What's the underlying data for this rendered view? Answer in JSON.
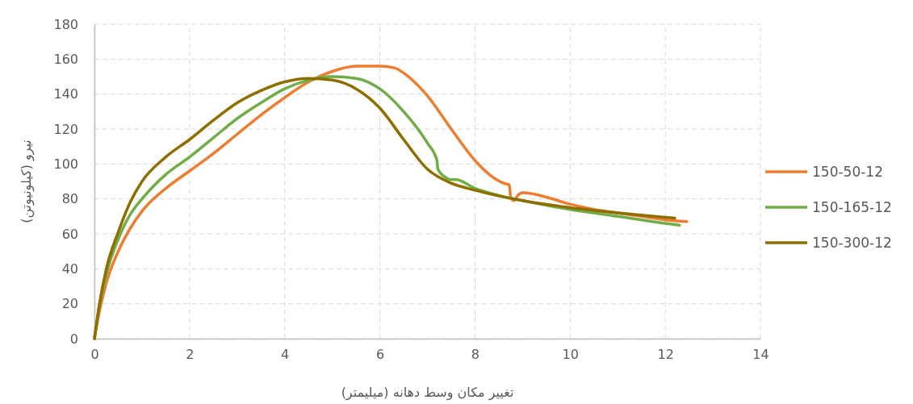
{
  "chart_data": {
    "type": "line",
    "xlabel": "تغییر مکان وسط دهانه (میلیمتر)",
    "ylabel": "نیرو (کیلونیوتن)",
    "xlim": [
      0,
      14
    ],
    "xticks": [
      0,
      2,
      4,
      6,
      8,
      10,
      12,
      14
    ],
    "ylim": [
      0,
      180
    ],
    "yticks": [
      0,
      20,
      40,
      60,
      80,
      100,
      120,
      140,
      160,
      180
    ],
    "grid": true,
    "legend": "right",
    "marker": "none",
    "line_style": "solid",
    "series": [
      {
        "name": "150-50-12",
        "color": "#ed7d31",
        "x": [
          0,
          0.1,
          0.25,
          0.5,
          0.75,
          1,
          1.5,
          2,
          2.5,
          3,
          3.5,
          4,
          4.5,
          5,
          5.5,
          6,
          6.3,
          6.6,
          7,
          7.5,
          8,
          8.3,
          8.6,
          8.72,
          8.75,
          8.82,
          8.9,
          9,
          9.2,
          9.5,
          10,
          10.5,
          11,
          11.5,
          12,
          12.45
        ],
        "values": [
          0,
          15,
          32,
          50,
          63,
          73,
          86,
          96,
          106,
          117,
          128,
          138,
          147,
          153,
          156,
          156,
          155,
          150,
          139,
          120,
          102,
          94,
          89,
          88,
          81,
          79,
          82,
          83.5,
          83,
          81,
          77,
          74,
          72,
          70,
          68,
          67
        ]
      },
      {
        "name": "150-165-12",
        "color": "#70ad47",
        "x": [
          0,
          0.1,
          0.25,
          0.5,
          0.75,
          1,
          1.5,
          2,
          2.5,
          3,
          3.5,
          4,
          4.5,
          5,
          5.5,
          6,
          6.5,
          7,
          7.2,
          7.22,
          7.4,
          7.5,
          7.6,
          8,
          8.5,
          9,
          10,
          11,
          12,
          12.3
        ],
        "values": [
          0,
          18,
          37,
          57,
          71,
          80,
          94,
          104,
          115,
          126,
          135,
          143,
          148,
          150,
          149,
          143,
          130,
          112,
          102,
          97,
          92,
          91,
          91,
          86,
          82,
          79,
          74,
          70,
          66,
          65
        ]
      },
      {
        "name": "150-300-12",
        "color": "#8f6e00",
        "x": [
          0,
          0.1,
          0.25,
          0.5,
          0.75,
          1,
          1.5,
          2,
          2.5,
          3,
          3.5,
          4,
          4.5,
          5,
          5.5,
          6,
          6.5,
          7,
          7.5,
          8,
          9,
          10,
          11,
          12,
          12.2
        ],
        "values": [
          0,
          19,
          40,
          61,
          78,
          90,
          104,
          114,
          125,
          135,
          142,
          147,
          149,
          148,
          143,
          132,
          114,
          97,
          89,
          85,
          79,
          75,
          72,
          69.5,
          69
        ]
      }
    ]
  }
}
